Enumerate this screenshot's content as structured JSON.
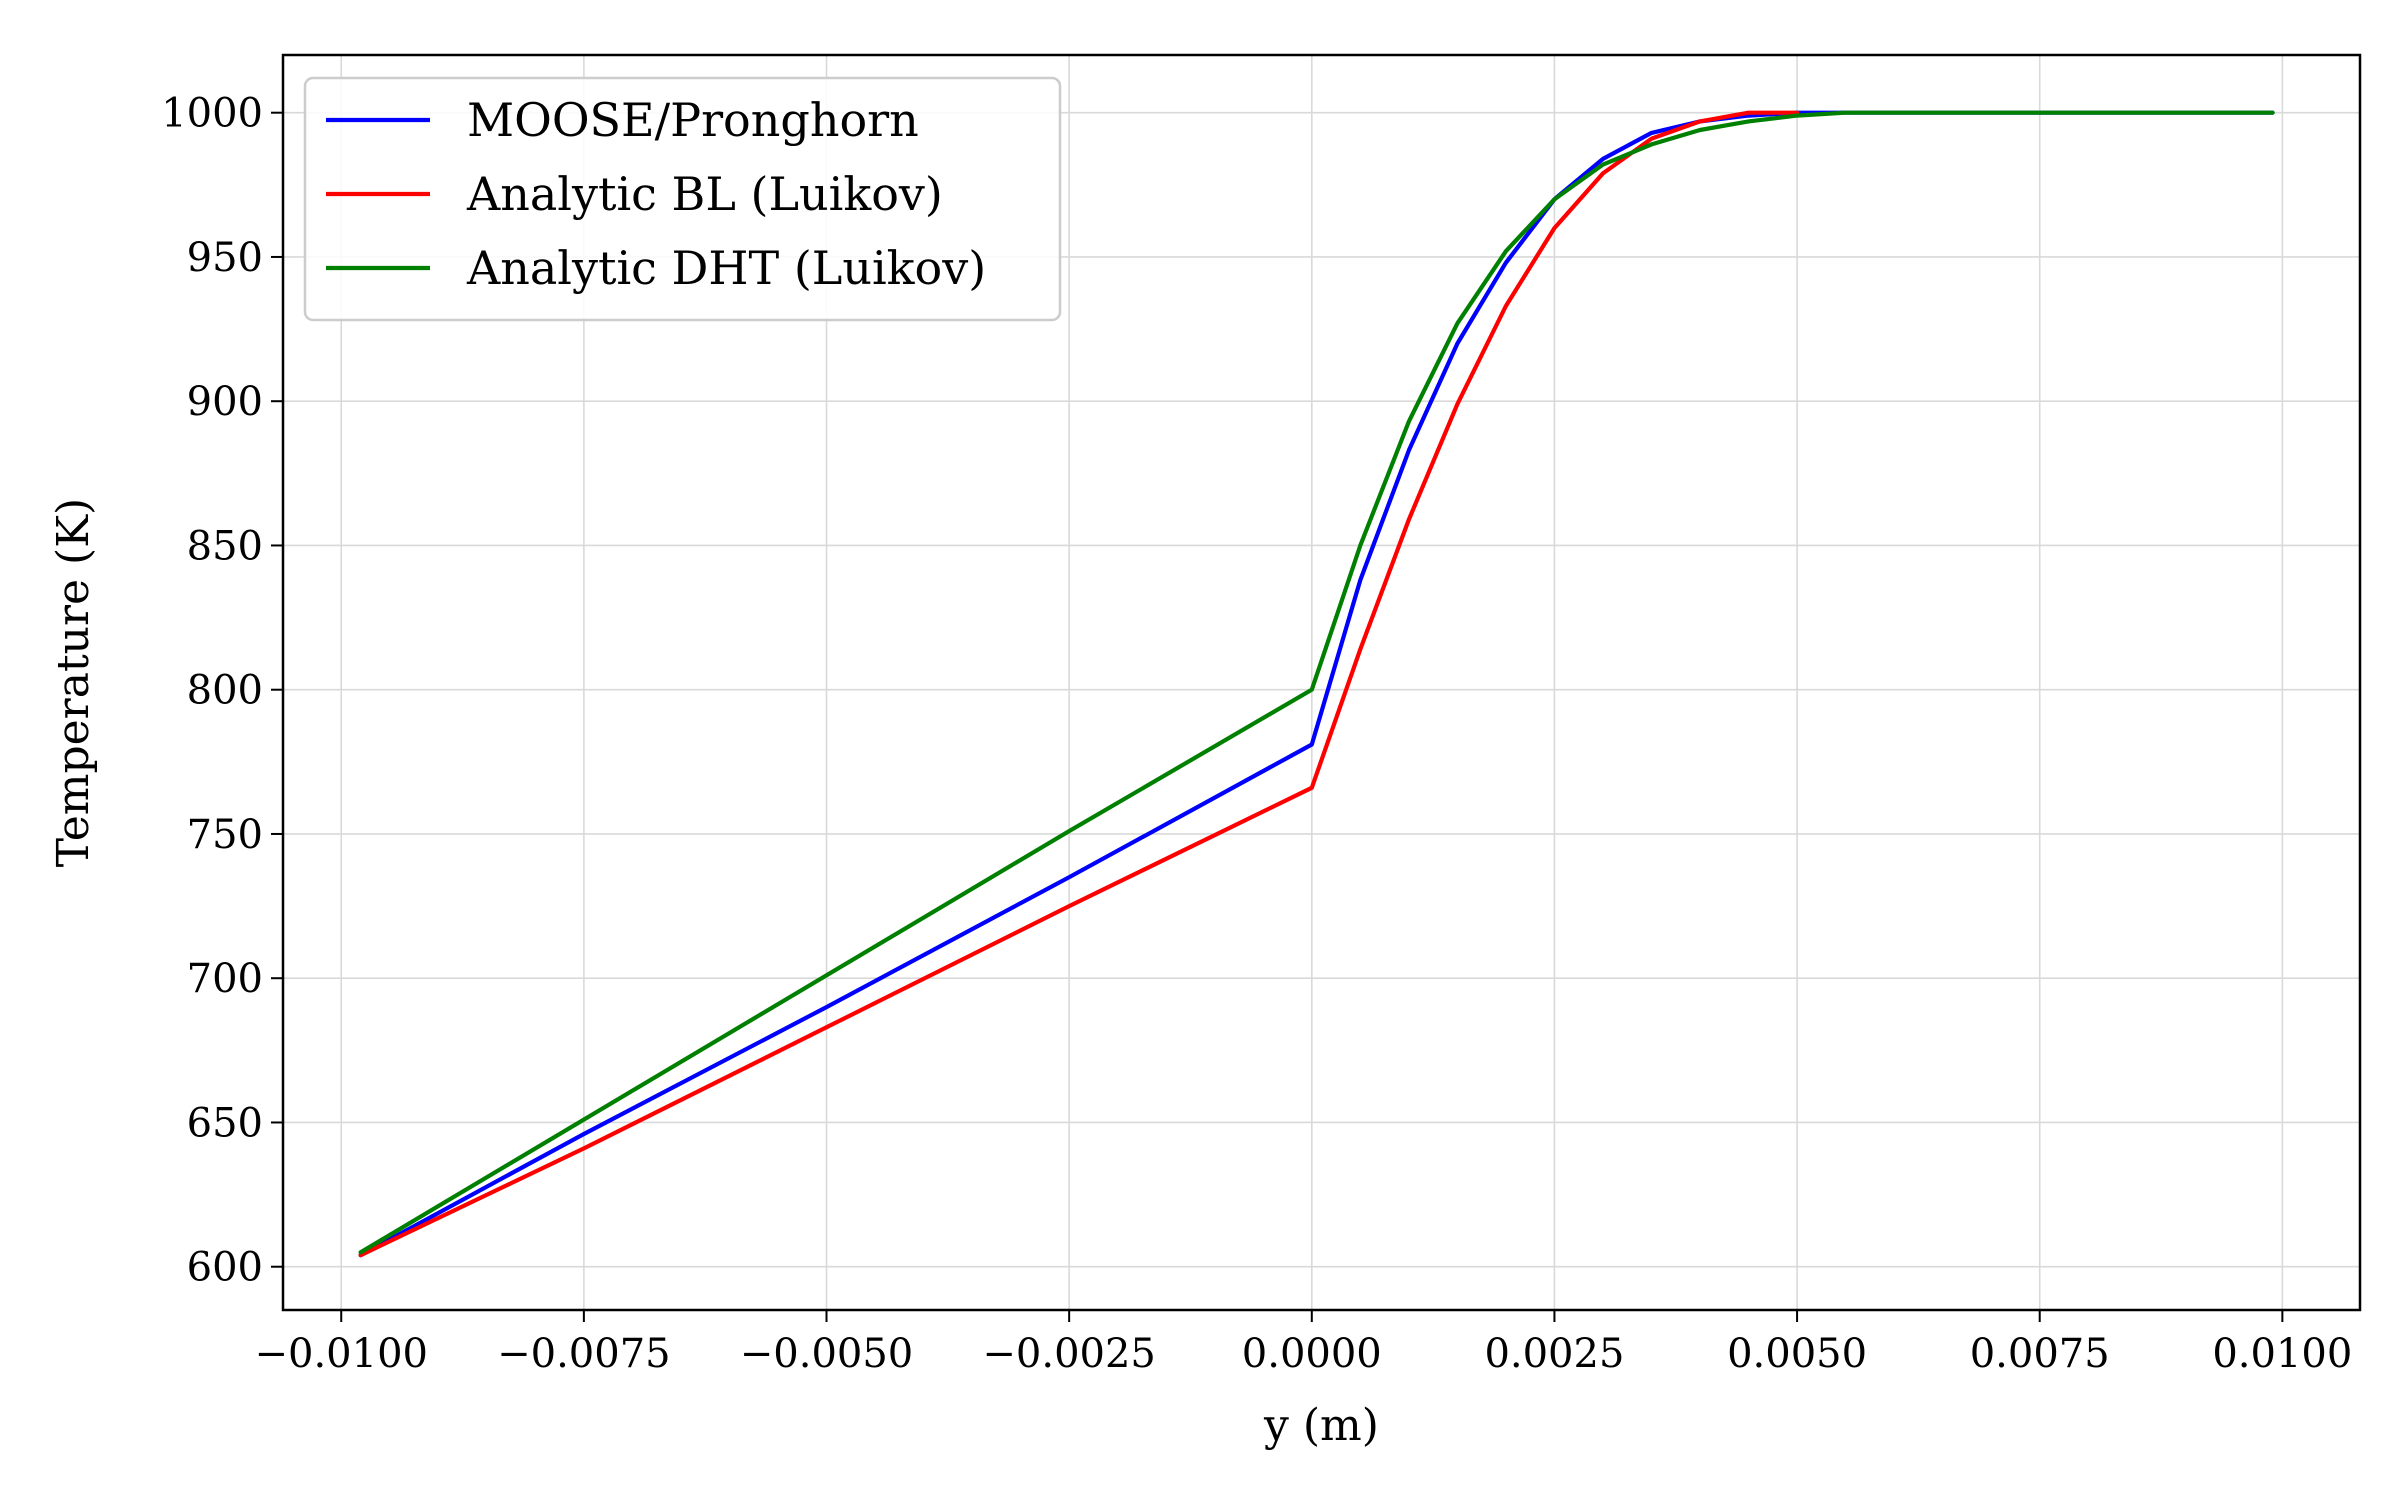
{
  "chart_data": {
    "type": "line",
    "title": "",
    "xlabel": "y (m)",
    "ylabel": "Temperature (K)",
    "xlim": [
      -0.0106,
      0.0108
    ],
    "ylim": [
      585,
      1020
    ],
    "xticks": [
      -0.01,
      -0.0075,
      -0.005,
      -0.0025,
      0.0,
      0.0025,
      0.005,
      0.0075,
      0.01
    ],
    "xtick_labels": [
      "−0.0100",
      "−0.0075",
      "−0.0050",
      "−0.0025",
      "0.0000",
      "0.0025",
      "0.0050",
      "0.0075",
      "0.0100"
    ],
    "yticks": [
      600,
      650,
      700,
      750,
      800,
      850,
      900,
      950,
      1000
    ],
    "ytick_labels": [
      "600",
      "650",
      "700",
      "750",
      "800",
      "850",
      "900",
      "950",
      "1000"
    ],
    "grid": true,
    "legend_position": "top-left",
    "series": [
      {
        "name": "MOOSE/Pronghorn",
        "color": "#0000ff",
        "x": [
          -0.0098,
          -0.0075,
          -0.005,
          -0.0025,
          0.0,
          0.0005,
          0.001,
          0.0015,
          0.002,
          0.0025,
          0.003,
          0.0035,
          0.004,
          0.0045,
          0.005,
          0.006,
          0.0075,
          0.0099
        ],
        "y": [
          604,
          646,
          690,
          735,
          781,
          838,
          883,
          920,
          948,
          970,
          984,
          993,
          997,
          999,
          1000,
          1000,
          1000,
          1000
        ]
      },
      {
        "name": "Analytic BL (Luikov)",
        "color": "#ff0000",
        "x": [
          -0.0098,
          -0.0075,
          -0.005,
          -0.0025,
          0.0,
          0.0005,
          0.001,
          0.0015,
          0.002,
          0.0025,
          0.003,
          0.0035,
          0.004,
          0.0045,
          0.005
        ],
        "y": [
          604,
          641,
          683,
          725,
          766,
          814,
          859,
          899,
          933,
          960,
          979,
          991,
          997,
          1000,
          1000
        ]
      },
      {
        "name": "Analytic DHT (Luikov)",
        "color": "#008000",
        "x": [
          -0.0098,
          -0.0075,
          -0.005,
          -0.0025,
          0.0,
          0.0005,
          0.001,
          0.0015,
          0.002,
          0.0025,
          0.003,
          0.0035,
          0.004,
          0.0045,
          0.005,
          0.0055,
          0.006,
          0.0075,
          0.0099
        ],
        "y": [
          605,
          651,
          701,
          751,
          800,
          850,
          893,
          927,
          952,
          970,
          982,
          989,
          994,
          997,
          999,
          1000,
          1000,
          1000,
          1000
        ]
      }
    ]
  }
}
